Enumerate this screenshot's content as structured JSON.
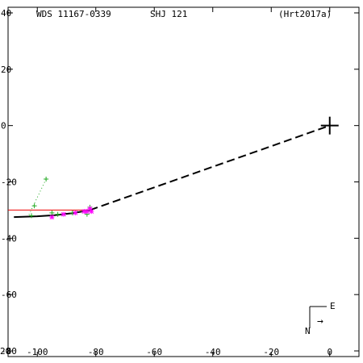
{
  "header": {
    "wds_id": "WDS 11167-0339",
    "discoverer": "SHJ 121",
    "reference": "(Hrt2017a)"
  },
  "compass": {
    "east_label": "E",
    "north_label": "N",
    "arrow_glyph": "→"
  },
  "corner_label": "20",
  "colors": {
    "frame": "#000000",
    "orbit": "#000000",
    "obs_green": "#22aa22",
    "obs_magenta": "#ff00ff",
    "obs_red": "#ee0000",
    "residual": "#22aa22"
  },
  "chart_data": {
    "type": "scatter",
    "title": "",
    "xlabel": "",
    "ylabel": "",
    "xlim": [
      -110,
      10
    ],
    "ylim": [
      -82,
      42
    ],
    "x_ticks": [
      -100,
      -80,
      -60,
      -40,
      -20,
      0
    ],
    "x_tick_labels": [
      "-100",
      "-80",
      "-60",
      "-40",
      "-20",
      "0"
    ],
    "y_ticks": [
      40,
      20,
      0,
      -20,
      -40,
      -60,
      -80
    ],
    "y_tick_labels": [
      "40",
      "20",
      "0",
      "-20",
      "-40",
      "-60",
      "-80"
    ],
    "primary": {
      "x": 0,
      "y": 0,
      "marker": "large-plus"
    },
    "orbit_solid": [
      [
        -108,
        -32.5
      ],
      [
        -100,
        -32.2
      ],
      [
        -94,
        -31.8
      ],
      [
        -88,
        -31.1
      ],
      [
        -84,
        -30.4
      ],
      [
        -82,
        -30
      ]
    ],
    "orbit_dashed": [
      [
        -82,
        -30
      ],
      [
        0,
        0
      ]
    ],
    "observations": [
      {
        "name": "green-plus",
        "marker": "+",
        "points": [
          [
            -97,
            -19
          ],
          [
            -101,
            -28.5
          ],
          [
            -95,
            -31
          ],
          [
            -93,
            -31.5
          ],
          [
            -88,
            -31
          ],
          [
            -83,
            -31.5
          ],
          [
            -82,
            -29
          ],
          [
            -102,
            -32
          ]
        ]
      },
      {
        "name": "magenta-star",
        "marker": "*",
        "points": [
          [
            -95,
            -32.5
          ],
          [
            -91,
            -31.5
          ],
          [
            -87,
            -31
          ],
          [
            -84,
            -30.5
          ],
          [
            -83,
            -30.5
          ],
          [
            -82,
            -29.5
          ],
          [
            -81.5,
            -30.5
          ]
        ]
      }
    ],
    "red_segment": [
      [
        -110,
        -30
      ],
      [
        -81,
        -30
      ]
    ],
    "residual_line": [
      [
        -97,
        -19
      ],
      [
        -103,
        -32
      ]
    ]
  }
}
